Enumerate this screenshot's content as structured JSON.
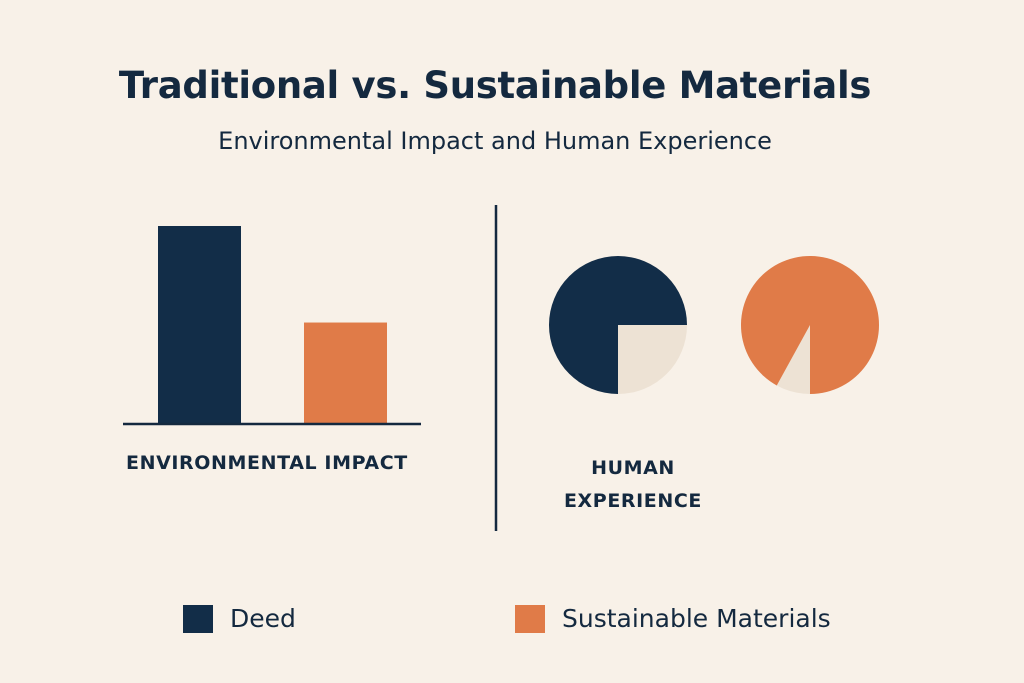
{
  "title": "Traditional vs. Sustainable Materials",
  "subtitle": "Environmental Impact and Human Experience",
  "colors": {
    "background": "#f8f1e8",
    "traditional": "#122d48",
    "sustainable": "#e07b48",
    "remainder": "#ede2d4",
    "text": "#14293f"
  },
  "panels": {
    "environmental": {
      "label": "ENVIRONMENTAL IMPACT"
    },
    "human": {
      "label_line1": "HUMAN",
      "label_line2": "EXPERIENCE"
    }
  },
  "legend": [
    {
      "label": "Deed",
      "color": "#122d48"
    },
    {
      "label": "Sustainable Materials",
      "color": "#e07b48"
    }
  ],
  "chart_data": [
    {
      "type": "bar",
      "title": "ENVIRONMENTAL IMPACT",
      "categories": [
        "Deed",
        "Sustainable Materials"
      ],
      "values": [
        100,
        51
      ],
      "xlabel": "ENVIRONMENTAL IMPACT",
      "ylabel": "",
      "ylim": [
        0,
        100
      ],
      "grid": false,
      "note": "No axis ticks shown; values are relative bar heights (traditional = 100)."
    },
    {
      "type": "pie",
      "title": "HUMAN EXPERIENCE — Deed",
      "labels": [
        "Deed",
        "Remainder"
      ],
      "values": [
        75,
        25
      ]
    },
    {
      "type": "pie",
      "title": "HUMAN EXPERIENCE — Sustainable Materials",
      "labels": [
        "Sustainable Materials",
        "Remainder"
      ],
      "values": [
        92,
        8
      ]
    }
  ]
}
